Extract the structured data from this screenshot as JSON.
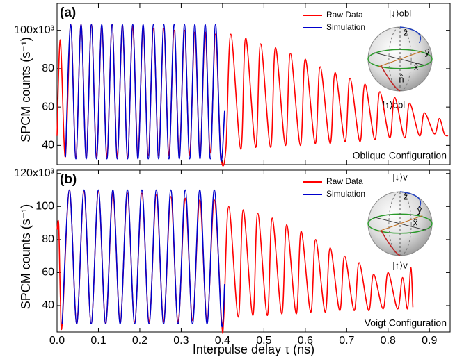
{
  "chart_data": [
    {
      "type": "line",
      "annotation": "(a)",
      "note": "Oblique Configuration",
      "y_label": "SPCM counts (s⁻¹)",
      "legend": "upper right",
      "xlim": [
        0,
        0.95
      ],
      "xticks": [
        0,
        0.1,
        0.2,
        0.3,
        0.4,
        0.5,
        0.6,
        0.7,
        0.8,
        0.9
      ],
      "ylim": [
        30,
        114
      ],
      "yticks": [
        40,
        60,
        80,
        {
          "value": 100,
          "label": "100x10³"
        }
      ],
      "inset_labels": [
        "|↓⟩obl",
        "ẑ",
        "ŷ",
        "x̂",
        "n̂",
        "|↑⟩obl"
      ],
      "series": [
        {
          "name": "Raw Data",
          "color": "#ff0000",
          "x": [
            0,
            0.008,
            0.02,
            0.033,
            0.0455,
            0.058,
            0.0705,
            0.083,
            0.0955,
            0.108,
            0.1205,
            0.133,
            0.1455,
            0.158,
            0.1705,
            0.183,
            0.1955,
            0.208,
            0.2205,
            0.233,
            0.2455,
            0.258,
            0.2705,
            0.283,
            0.2955,
            0.308,
            0.3205,
            0.333,
            0.3455,
            0.358,
            0.3705,
            0.383,
            0.3955,
            0.408,
            0.42,
            0.444,
            0.456,
            0.48,
            0.492,
            0.516,
            0.528,
            0.552,
            0.564,
            0.588,
            0.6,
            0.624,
            0.636,
            0.66,
            0.672,
            0.696,
            0.708,
            0.732,
            0.744,
            0.768,
            0.78,
            0.804,
            0.816,
            0.84,
            0.852,
            0.876,
            0.888,
            0.912,
            0.924,
            0.936,
            0.945
          ],
          "values": [
            45,
            95,
            34,
            103,
            34,
            103,
            34,
            103,
            34,
            102,
            34,
            103,
            34,
            102,
            34,
            102,
            35,
            101,
            35,
            101,
            35,
            101,
            35,
            100,
            35,
            100,
            35,
            99,
            35,
            99,
            36,
            98,
            36,
            38,
            98,
            38,
            96,
            39,
            93,
            39,
            91,
            40,
            88,
            40,
            85,
            41,
            81,
            41,
            78,
            42,
            75,
            42,
            72,
            43,
            68,
            44,
            65,
            44,
            62,
            45,
            57,
            46,
            54,
            46,
            45
          ]
        },
        {
          "name": "Simulation",
          "color": "#0000cc",
          "x": [
            0.0205,
            0.033,
            0.0455,
            0.058,
            0.0705,
            0.083,
            0.0955,
            0.108,
            0.1205,
            0.133,
            0.1455,
            0.158,
            0.1705,
            0.183,
            0.1955,
            0.208,
            0.2205,
            0.233,
            0.2455,
            0.258,
            0.2705,
            0.283,
            0.2955,
            0.308,
            0.3205,
            0.333,
            0.3455,
            0.358,
            0.3705,
            0.383,
            0.3955,
            0.405
          ],
          "values": [
            34,
            103,
            33,
            103,
            33,
            103,
            33,
            103,
            33,
            103,
            33,
            103,
            33,
            103,
            33,
            103,
            33,
            103,
            33,
            103,
            33,
            103,
            33,
            103,
            33,
            103,
            33,
            103,
            33,
            103,
            33,
            58
          ]
        }
      ]
    },
    {
      "type": "line",
      "annotation": "(b)",
      "note": "Voigt Configuration",
      "y_label": "SPCM counts (s⁻¹)",
      "x_label": "Interpulse delay τ (ns)",
      "legend": "upper right",
      "xlim": [
        0,
        0.95
      ],
      "xticks": [
        {
          "value": 0,
          "label": "0.0"
        },
        0.1,
        0.2,
        0.3,
        0.4,
        0.5,
        0.6,
        0.7,
        0.8,
        0.9
      ],
      "ylim": [
        24,
        122
      ],
      "yticks": [
        40,
        60,
        80,
        100,
        {
          "value": 120,
          "label": "120x10³"
        }
      ],
      "inset_labels": [
        "|↓⟩v",
        "ẑ",
        "ŷ",
        "x̂",
        "|↑⟩v"
      ],
      "series": [
        {
          "name": "Raw Data",
          "color": "#ff0000",
          "x": [
            0,
            0.004,
            0.008,
            0.0125,
            0.03,
            0.0475,
            0.065,
            0.0825,
            0.1,
            0.1175,
            0.135,
            0.1525,
            0.17,
            0.1875,
            0.205,
            0.2225,
            0.24,
            0.2575,
            0.275,
            0.2925,
            0.31,
            0.3275,
            0.345,
            0.3625,
            0.38,
            0.3975,
            0.403,
            0.415,
            0.438,
            0.45,
            0.473,
            0.485,
            0.508,
            0.52,
            0.543,
            0.555,
            0.578,
            0.59,
            0.613,
            0.625,
            0.648,
            0.66,
            0.683,
            0.695,
            0.718,
            0.73,
            0.753,
            0.765,
            0.788,
            0.8,
            0.823,
            0.835,
            0.847,
            0.855,
            0.86
          ],
          "values": [
            86,
            89,
            45,
            29,
            110,
            29,
            109,
            29,
            109,
            29,
            108,
            30,
            108,
            30,
            108,
            30,
            107,
            30,
            106,
            30,
            105,
            31,
            104,
            31,
            104,
            31,
            33,
            100,
            33,
            98,
            34,
            96,
            34,
            93,
            35,
            89,
            35,
            85,
            36,
            80,
            36,
            75,
            37,
            70,
            37,
            66,
            37,
            59,
            38,
            60,
            38,
            57,
            38,
            63,
            39
          ]
        },
        {
          "name": "Simulation",
          "color": "#0000cc",
          "x": [
            0.0125,
            0.03,
            0.0475,
            0.065,
            0.0825,
            0.1,
            0.1175,
            0.135,
            0.1525,
            0.17,
            0.1875,
            0.205,
            0.2225,
            0.24,
            0.2575,
            0.275,
            0.2925,
            0.31,
            0.3275,
            0.345,
            0.3625,
            0.38,
            0.3975,
            0.405
          ],
          "values": [
            29,
            110,
            29,
            110,
            29,
            110,
            29,
            110,
            29,
            110,
            29,
            110,
            29,
            110,
            29,
            110,
            29,
            110,
            29,
            110,
            29,
            110,
            29,
            53
          ]
        }
      ]
    }
  ]
}
